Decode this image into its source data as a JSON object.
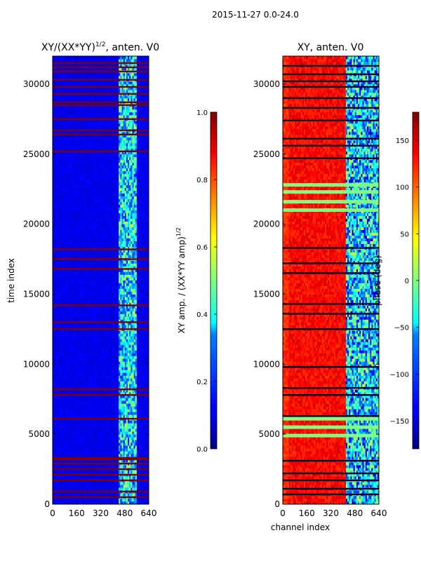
{
  "suptitle": "2015-11-27 0.0-24.0",
  "chart_data": [
    {
      "type": "heatmap",
      "title": "XY/(XX*YY)^1/2, anten. V0",
      "title_main": "XY/(XX*YY)",
      "title_exp": "1/2",
      "title_tail": ", anten. V0",
      "xlabel": "",
      "ylabel": "time index",
      "xlim": [
        0,
        640
      ],
      "ylim": [
        0,
        32000
      ],
      "xticks": [
        0,
        160,
        320,
        480,
        640
      ],
      "yticks": [
        0,
        5000,
        10000,
        15000,
        20000,
        25000,
        30000
      ],
      "colorbar": {
        "label_main": "XY amp. / (XX*YY amp)",
        "label_exp": "1/2",
        "range": [
          0.0,
          1.0
        ],
        "ticks": [
          "0.0",
          "0.2",
          "0.4",
          "0.6",
          "0.8",
          "1.0"
        ],
        "tick_values": [
          0.0,
          0.2,
          0.4,
          0.6,
          0.8,
          1.0
        ]
      },
      "colormap": "jet",
      "description_features": {
        "background_value": 0.08,
        "active_band_channels": [
          440,
          560
        ],
        "active_band_value": 0.35,
        "saturated_rows_time_index": [
          500,
          900,
          1700,
          2100,
          2500,
          2900,
          3200,
          3300,
          6100,
          7800,
          8200,
          12500,
          13000,
          14200,
          16800,
          17500,
          18200,
          25200,
          26400,
          26700,
          27500,
          28500,
          28700,
          29300,
          29800,
          30300,
          30900,
          31200,
          31500
        ]
      }
    },
    {
      "type": "heatmap",
      "title": "XY, anten. V0",
      "xlabel": "channel index",
      "ylabel": "",
      "xlim": [
        0,
        640
      ],
      "ylim": [
        0,
        32000
      ],
      "xticks": [
        0,
        160,
        320,
        480,
        640
      ],
      "yticks": [
        0,
        5000,
        10000,
        15000,
        20000,
        25000,
        30000
      ],
      "colorbar": {
        "label": "phase (deg)",
        "range": [
          -180,
          180
        ],
        "ticks": [
          "150",
          "100",
          "50",
          "0",
          "−50",
          "−100",
          "−150"
        ],
        "tick_values": [
          150,
          100,
          50,
          0,
          -50,
          -100,
          -150
        ]
      },
      "colormap": "jet",
      "description_features": {
        "low_channel_phase_deg": 120,
        "mid_channel_phase_deg": 150,
        "high_channel_phase_deg": -60,
        "transition_channel": 420,
        "dark_rows_time_index": [
          700,
          1100,
          1700,
          2200,
          3100,
          6300,
          7800,
          8300,
          9800,
          12500,
          13600,
          14300,
          16500,
          17200,
          18300,
          24700,
          25600,
          26100,
          27400,
          28300,
          29000,
          29800,
          30200,
          30700,
          31300
        ],
        "green_rows_time_index": [
          4900,
          5500,
          6100,
          21000,
          21600,
          22300,
          22800
        ]
      }
    }
  ]
}
